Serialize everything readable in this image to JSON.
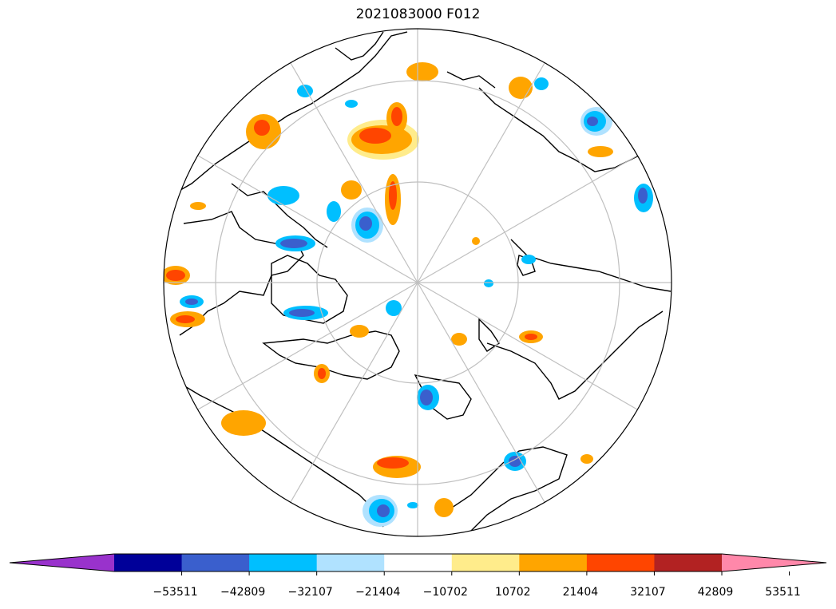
{
  "title": "2021083000 F012",
  "colorbar": {
    "extend_low_color": "#9932cc",
    "extend_high_color": "#ff88aa",
    "bins": [
      {
        "color": "#000099"
      },
      {
        "color": "#3a5fcd"
      },
      {
        "color": "#00bfff"
      },
      {
        "color": "#b0e2ff"
      },
      {
        "color": "#ffffff"
      },
      {
        "color": "#ffec8b"
      },
      {
        "color": "#ffa500"
      },
      {
        "color": "#ff4500"
      },
      {
        "color": "#b22222"
      }
    ],
    "tick_labels": [
      "−53511",
      "−42809",
      "−32107",
      "−21404",
      "−10702",
      "10702",
      "21404",
      "32107",
      "42809",
      "53511"
    ]
  },
  "map": {
    "projection": "north-polar-stereographic",
    "graticule_color": "#c0c0c0",
    "coastline_color": "#000000",
    "positive_anomaly_colors": [
      "#ffec8b",
      "#ffa500",
      "#ff4500"
    ],
    "negative_anomaly_colors": [
      "#b0e2ff",
      "#00bfff",
      "#3a5fcd"
    ]
  }
}
